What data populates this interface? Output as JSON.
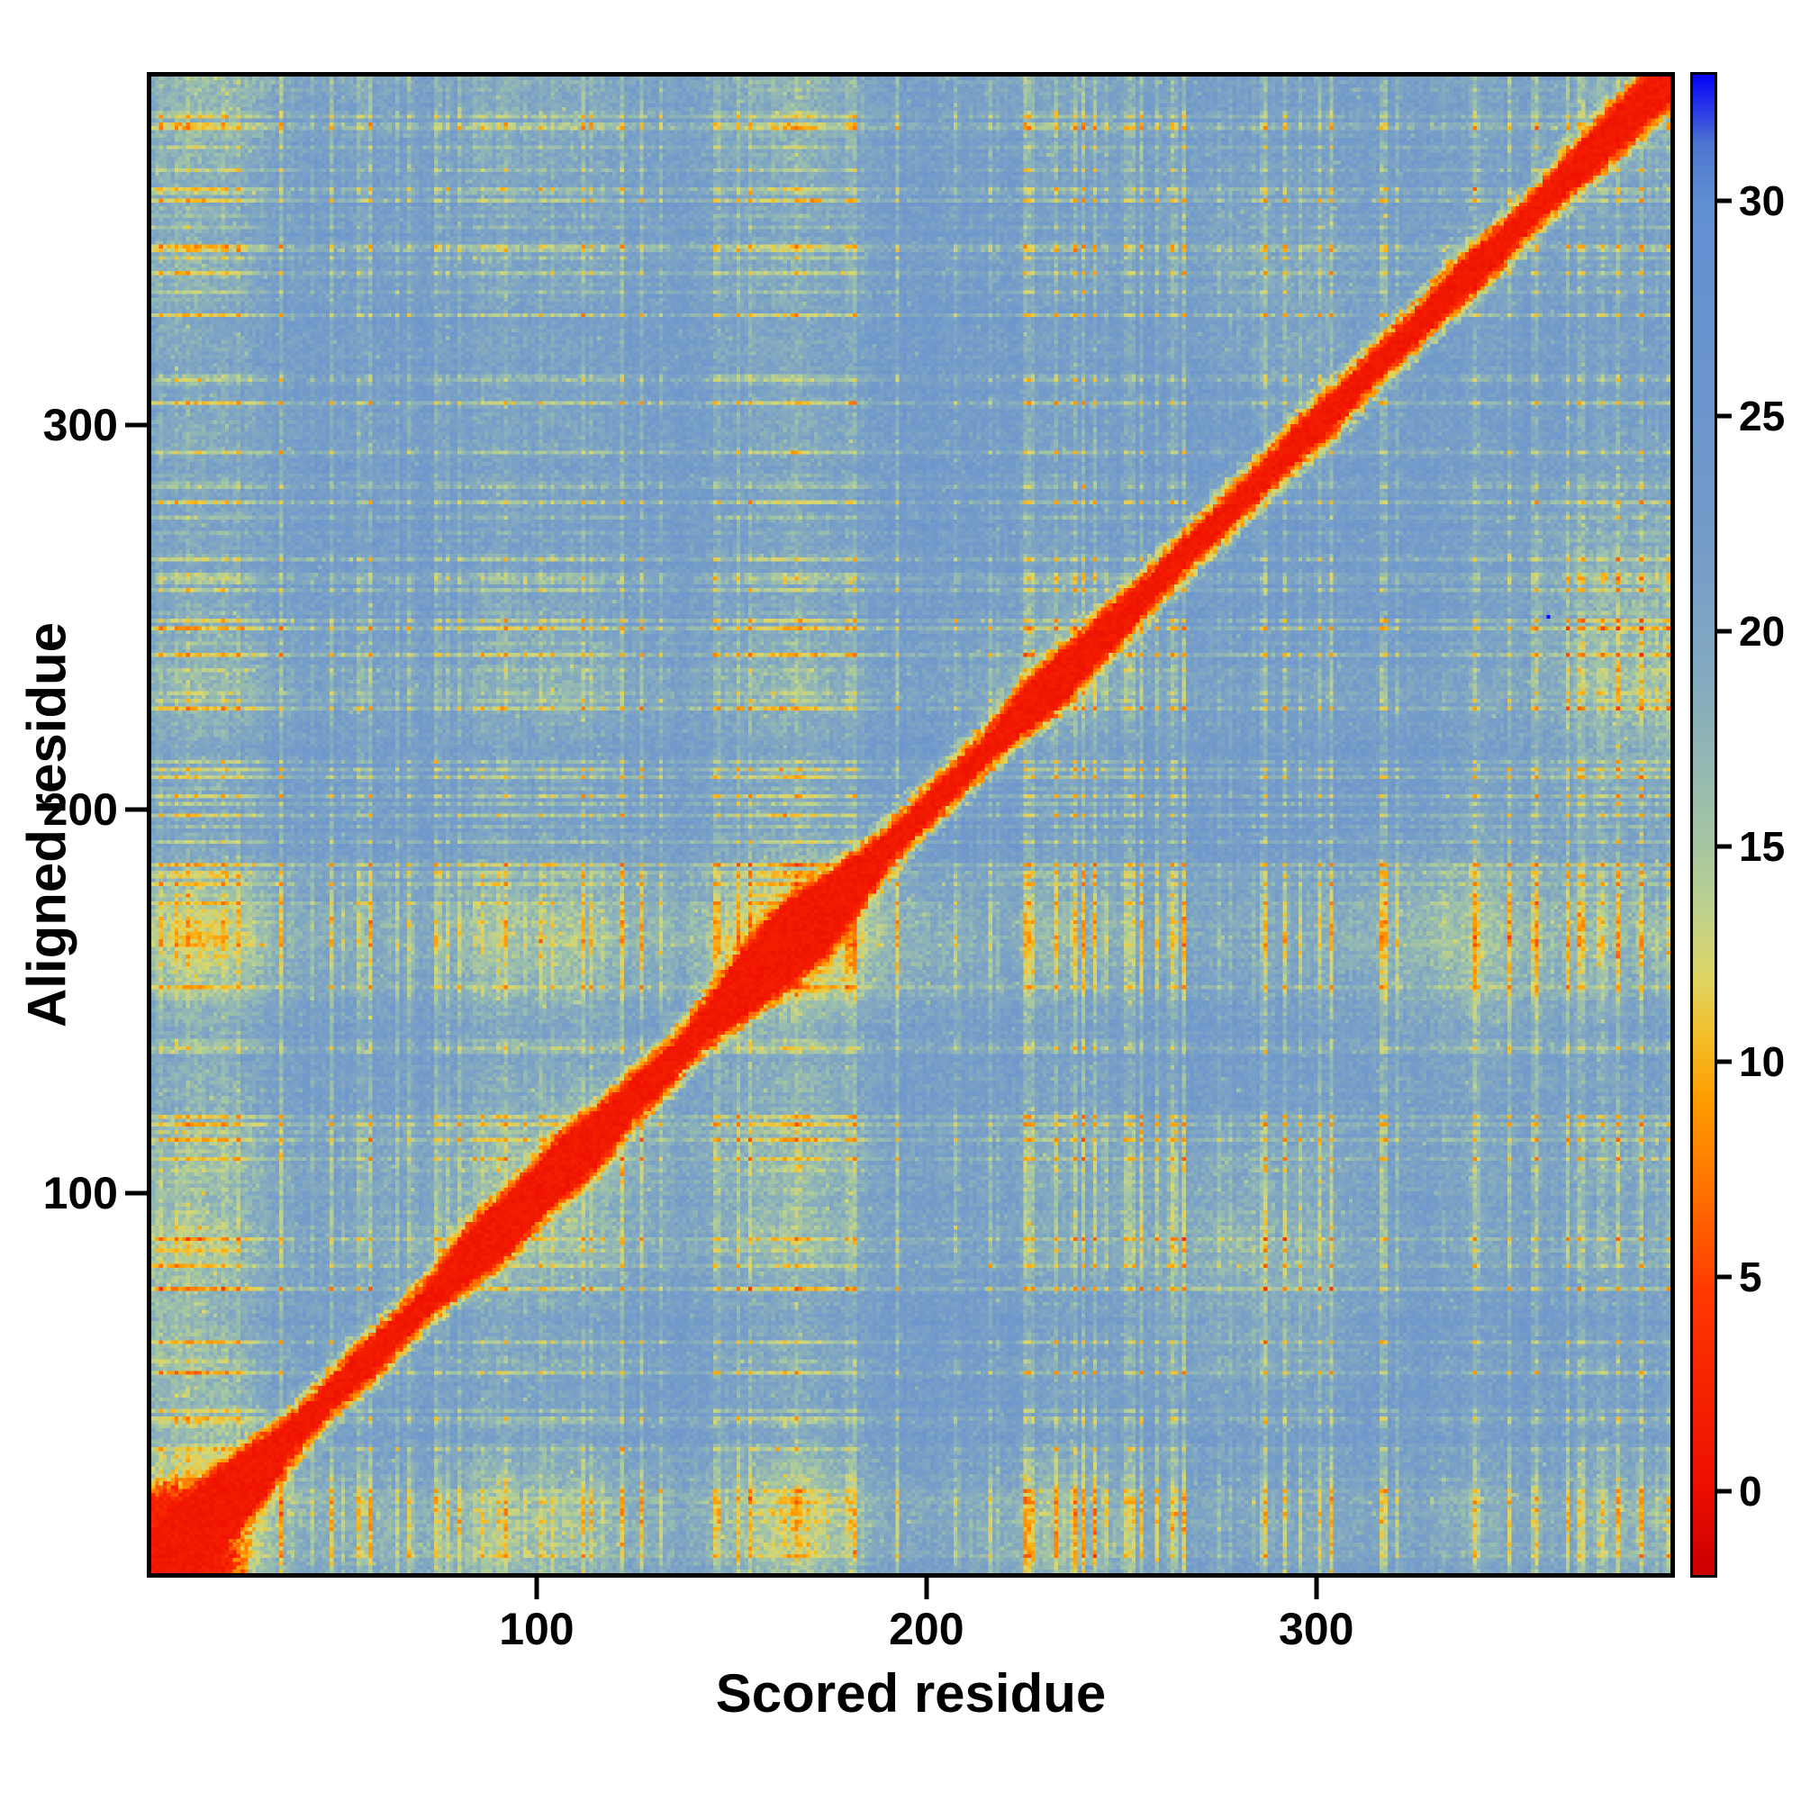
{
  "chart_data": {
    "type": "heatmap",
    "title": "",
    "xlabel": "Scored residue",
    "ylabel": "Aligned residue",
    "x_range": [
      0,
      392
    ],
    "y_range": [
      0,
      392
    ],
    "x_ticks": [
      100,
      200,
      300
    ],
    "y_ticks": [
      100,
      200,
      300
    ],
    "grid": false,
    "legend": "colorbar-right",
    "colorbar": {
      "ticks": [
        0,
        5,
        10,
        15,
        20,
        25,
        30
      ],
      "range": [
        -2,
        33
      ]
    },
    "colormap_stops": [
      [
        -2,
        "#cc0000"
      ],
      [
        0,
        "#ee0f00"
      ],
      [
        4.5,
        "#ff3800"
      ],
      [
        7,
        "#ff7300"
      ],
      [
        9,
        "#ff9d00"
      ],
      [
        10.5,
        "#f5bd27"
      ],
      [
        12,
        "#ded767"
      ],
      [
        13.5,
        "#bfd28d"
      ],
      [
        15,
        "#a7c7a2"
      ],
      [
        17,
        "#93b8b4"
      ],
      [
        19,
        "#84aac1"
      ],
      [
        22,
        "#759dc9"
      ],
      [
        26,
        "#6b94cf"
      ],
      [
        30,
        "#6190d2"
      ],
      [
        31.4,
        "#4f78d0"
      ],
      [
        32.2,
        "#2b3ae8"
      ],
      [
        33,
        "#0806f8"
      ]
    ],
    "description": "Predicted-aligned-error style residue-vs-residue matrix: low (red) values along the main diagonal on a high (steel blue) background flecked with yellow-green; large red cluster in the bottom-left corner (first ~20 residues); thicker red diagonal blobs near residues 88, 104-113, 157-172, 232 and at the top-right end; faint yellow-green row/column streaks crossing at the blob positions; single saturated blue outlier pixel near (360, 250).",
    "generation": {
      "n": 392,
      "seed": 7,
      "bg_mean": 22.8,
      "diag_width": 2.0,
      "corner_size": 19,
      "blobs": [
        {
          "pos": 10,
          "radius": 10,
          "extra": 8.0
        },
        {
          "pos": 26,
          "radius": 6,
          "extra": 2.5
        },
        {
          "pos": 55,
          "radius": 5,
          "extra": 1.2
        },
        {
          "pos": 88,
          "radius": 8,
          "extra": 4.5
        },
        {
          "pos": 104,
          "radius": 5,
          "extra": 2.5
        },
        {
          "pos": 113,
          "radius": 6,
          "extra": 3.5
        },
        {
          "pos": 128,
          "radius": 4,
          "extra": 1.5
        },
        {
          "pos": 157,
          "radius": 9,
          "extra": 5.0
        },
        {
          "pos": 170,
          "radius": 7,
          "extra": 6.0
        },
        {
          "pos": 182,
          "radius": 4,
          "extra": 1.5
        },
        {
          "pos": 232,
          "radius": 7,
          "extra": 3.2
        },
        {
          "pos": 248,
          "radius": 4,
          "extra": 1.2
        },
        {
          "pos": 300,
          "radius": 5,
          "extra": 1.0
        },
        {
          "pos": 340,
          "radius": 6,
          "extra": 1.4
        },
        {
          "pos": 376,
          "radius": 8,
          "extra": 2.2
        },
        {
          "pos": 392,
          "radius": 6,
          "extra": 2.5
        }
      ]
    },
    "outlier_points": [
      {
        "x": 360,
        "y": 250,
        "value": 33
      }
    ]
  }
}
